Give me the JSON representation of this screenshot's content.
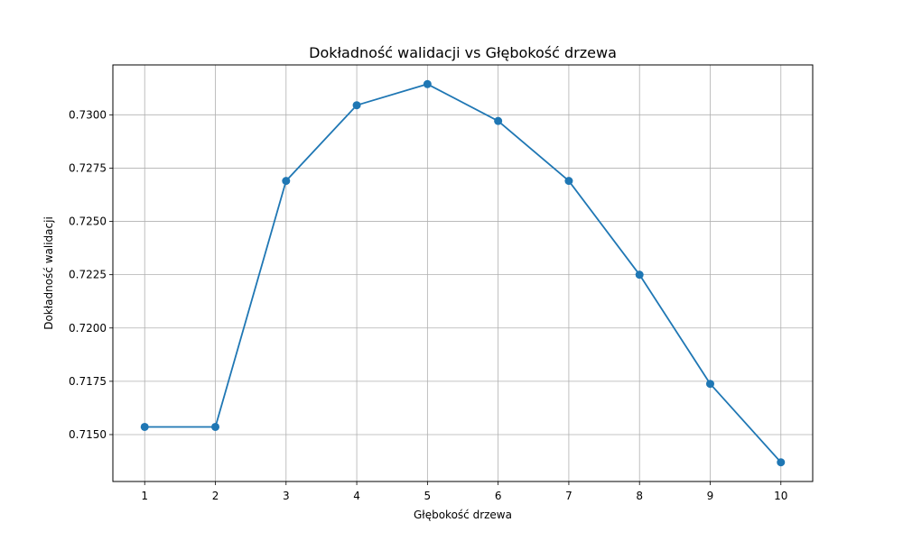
{
  "chart_data": {
    "type": "line",
    "title": "Dokładność walidacji vs Głębokość drzewa",
    "xlabel": "Głębokość drzewa",
    "ylabel": "Dokładność walidacji",
    "x": [
      1,
      2,
      3,
      4,
      5,
      6,
      7,
      8,
      9,
      10
    ],
    "series": [
      {
        "values": [
          0.71536,
          0.71536,
          0.7269,
          0.73045,
          0.73144,
          0.72971,
          0.7269,
          0.7225,
          0.71738,
          0.7137
        ],
        "color": "#1f77b4",
        "marker": "circle"
      }
    ],
    "x_ticks": [
      "1",
      "2",
      "3",
      "4",
      "5",
      "6",
      "7",
      "8",
      "9",
      "10"
    ],
    "y_ticks": [
      {
        "value": 0.715,
        "label": "0.7150"
      },
      {
        "value": 0.7175,
        "label": "0.7175"
      },
      {
        "value": 0.72,
        "label": "0.7200"
      },
      {
        "value": 0.7225,
        "label": "0.7225"
      },
      {
        "value": 0.725,
        "label": "0.7250"
      },
      {
        "value": 0.7275,
        "label": "0.7275"
      },
      {
        "value": 0.73,
        "label": "0.7300"
      }
    ],
    "xlim": [
      0.55,
      10.45
    ],
    "ylim": [
      0.7128,
      0.73234
    ],
    "grid": true
  }
}
